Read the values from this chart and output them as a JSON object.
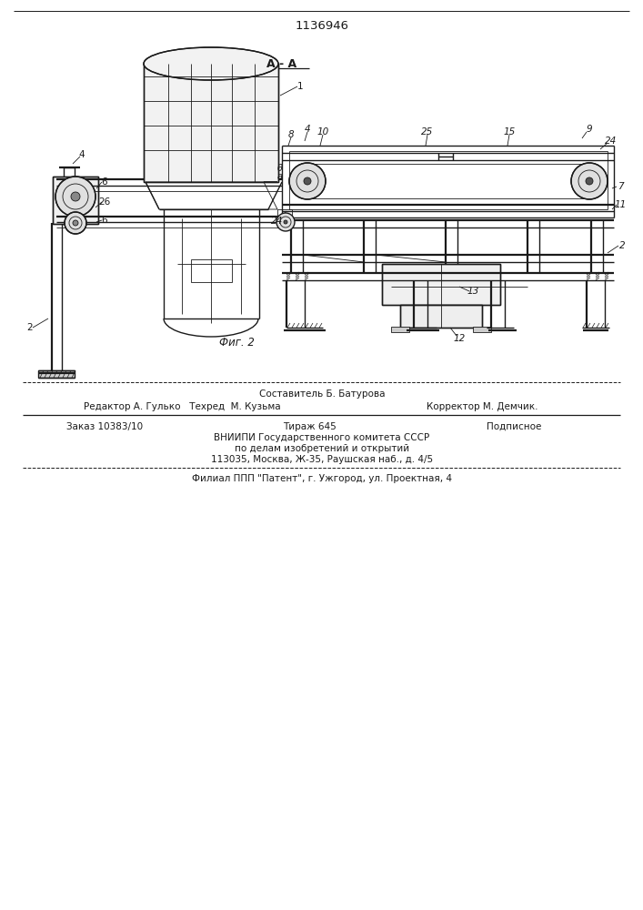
{
  "patent_number": "1136946",
  "section_label": "А - А",
  "fig_label": "Фиг. 2",
  "footer_line1": "Составитель Б. Батурова",
  "footer_line2_left": "Редактор А. Гулько   Техред  М. Кузьма",
  "footer_line2_right": "Корректор М. Демчик.",
  "footer_line3_left": "Заказ 10383/10",
  "footer_line3_mid": "Тираж 645",
  "footer_line3_right": "Подписное",
  "footer_line4": "ВНИИПИ Государственного комитета СССР",
  "footer_line5": "по делам изобретений и открытий",
  "footer_line6": "113035, Москва, Ж-35, Раушская наб., д. 4/5",
  "footer_line7": "Филиал ППП \"Патент\", г. Ужгород, ул. Проектная, 4",
  "bg_color": "#ffffff",
  "line_color": "#1a1a1a"
}
